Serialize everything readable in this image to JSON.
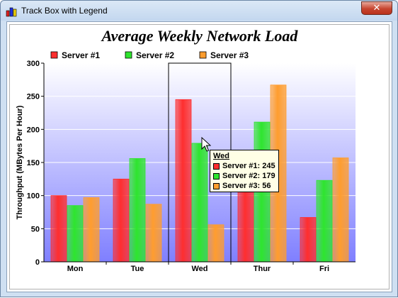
{
  "window": {
    "title": "Track Box with Legend",
    "close_glyph": "✕"
  },
  "colors": {
    "series1": "#ff2e2e",
    "series2": "#2ee52e",
    "series3": "#ff9d2e",
    "plot_top": "#ffffff",
    "plot_bottom": "#7f7fff"
  },
  "chart_data": {
    "type": "bar",
    "title": "Average Weekly Network Load",
    "ylabel": "Throughput (MBytes Per Hour)",
    "xlabel": "",
    "categories": [
      "Mon",
      "Tue",
      "Wed",
      "Thur",
      "Fri"
    ],
    "series": [
      {
        "name": "Server #1",
        "values": [
          100,
          125,
          245,
          110,
          67
        ]
      },
      {
        "name": "Server #2",
        "values": [
          85,
          156,
          179,
          211,
          123
        ]
      },
      {
        "name": "Server #3",
        "values": [
          97,
          87,
          56,
          267,
          157
        ]
      }
    ],
    "ylim": [
      0,
      300
    ],
    "yticks": [
      0,
      50,
      100,
      150,
      200,
      250,
      300
    ],
    "legend": "top-left",
    "grid": true
  },
  "tooltip": {
    "title": "Wed",
    "rows": [
      "Server #1: 245",
      "Server #2: 179",
      "Server #3: 56"
    ]
  }
}
